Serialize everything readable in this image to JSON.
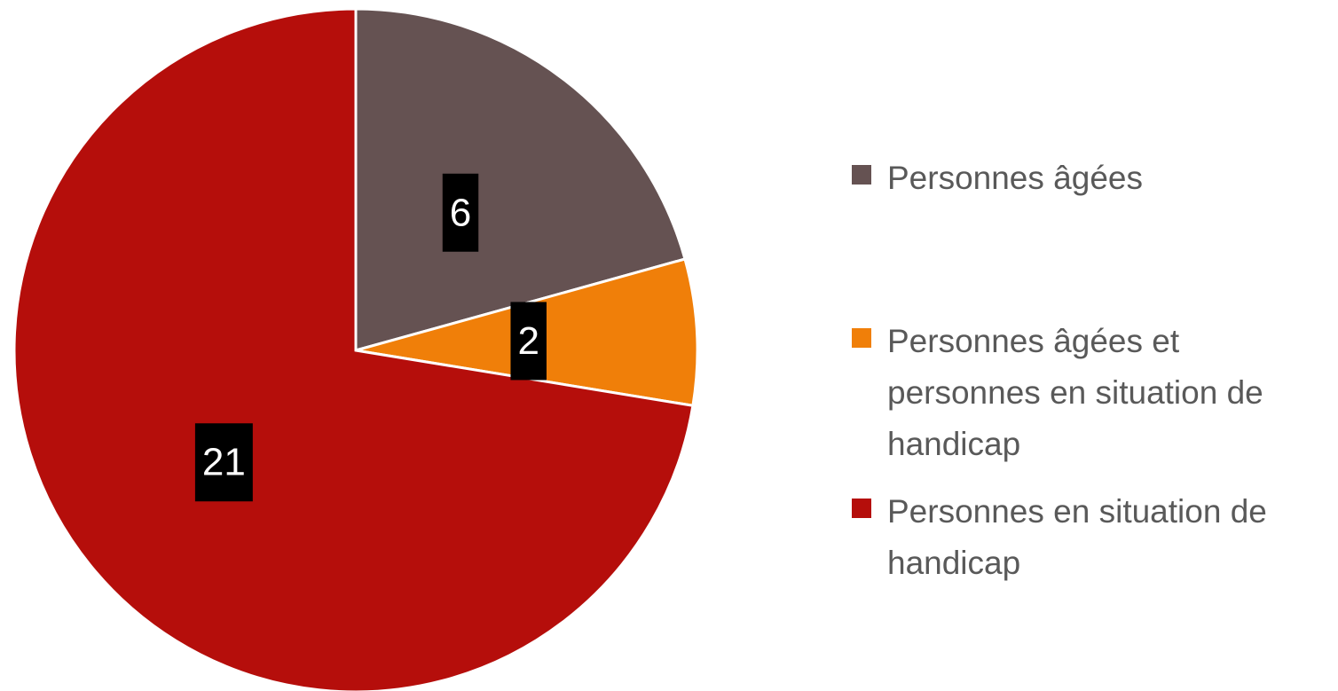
{
  "chart_data": {
    "type": "pie",
    "categories": [
      "Personnes âgées",
      "Personnes âgées et personnes en situation de handicap",
      "Personnes en situation de handicap"
    ],
    "values": [
      6,
      2,
      21
    ],
    "colors": [
      "#655252",
      "#f07f09",
      "#b50e0b"
    ],
    "legend": "right"
  }
}
